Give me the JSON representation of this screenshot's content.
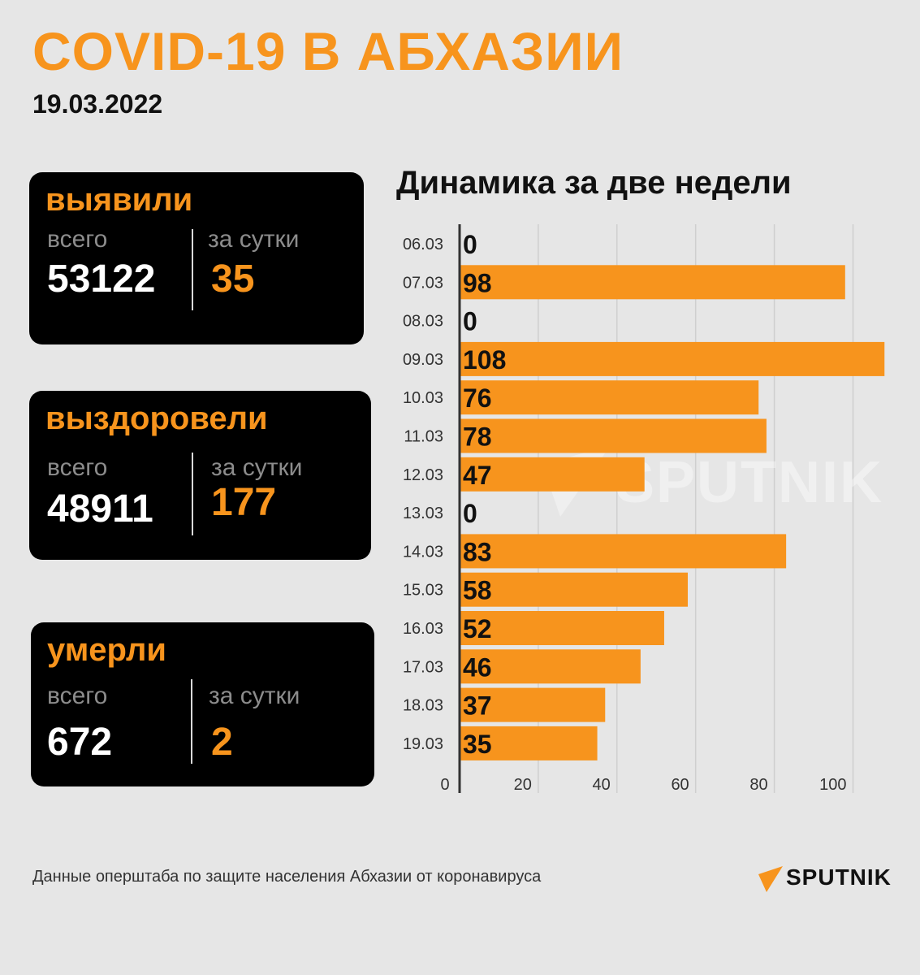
{
  "header": {
    "title": "COVID-19 В АБХАЗИИ",
    "date": "19.03.2022"
  },
  "cards": {
    "detected": {
      "title": "выявили",
      "total_label": "всего",
      "total": "53122",
      "daily_label": "за сутки",
      "daily": "35"
    },
    "recovered": {
      "title": "выздоровели",
      "total_label": "всего",
      "total": "48911",
      "daily_label": "за сутки",
      "daily": "177"
    },
    "died": {
      "title": "умерли",
      "total_label": "всего",
      "total": "672",
      "daily_label": "за сутки",
      "daily": "2"
    }
  },
  "chart_data": {
    "type": "bar",
    "orientation": "horizontal",
    "title": "Динамика за две недели",
    "categories": [
      "06.03",
      "07.03",
      "08.03",
      "09.03",
      "10.03",
      "11.03",
      "12.03",
      "13.03",
      "14.03",
      "15.03",
      "16.03",
      "17.03",
      "18.03",
      "19.03"
    ],
    "values": [
      0,
      98,
      0,
      108,
      76,
      78,
      47,
      0,
      83,
      58,
      52,
      46,
      37,
      35
    ],
    "data_labels": [
      "0",
      "98",
      "0",
      "108",
      "76",
      "78",
      "47",
      "0",
      "83",
      "58",
      "52",
      "46",
      "37",
      "35"
    ],
    "x_ticks": [
      "0",
      "20",
      "40",
      "60",
      "80",
      "100"
    ],
    "x_tick_values": [
      0,
      20,
      40,
      60,
      80,
      100
    ],
    "xlim": [
      0,
      110
    ],
    "grid": true,
    "bar_color": "#f7941d"
  },
  "watermark": {
    "text": "SPUTNIK"
  },
  "footer": {
    "source": "Данные оперштаба по защите населения Абхазии от коронавируса",
    "logo_text": "SPUTNIK"
  },
  "colors": {
    "accent": "#f7941d",
    "background": "#e6e6e6",
    "card": "#000000"
  }
}
